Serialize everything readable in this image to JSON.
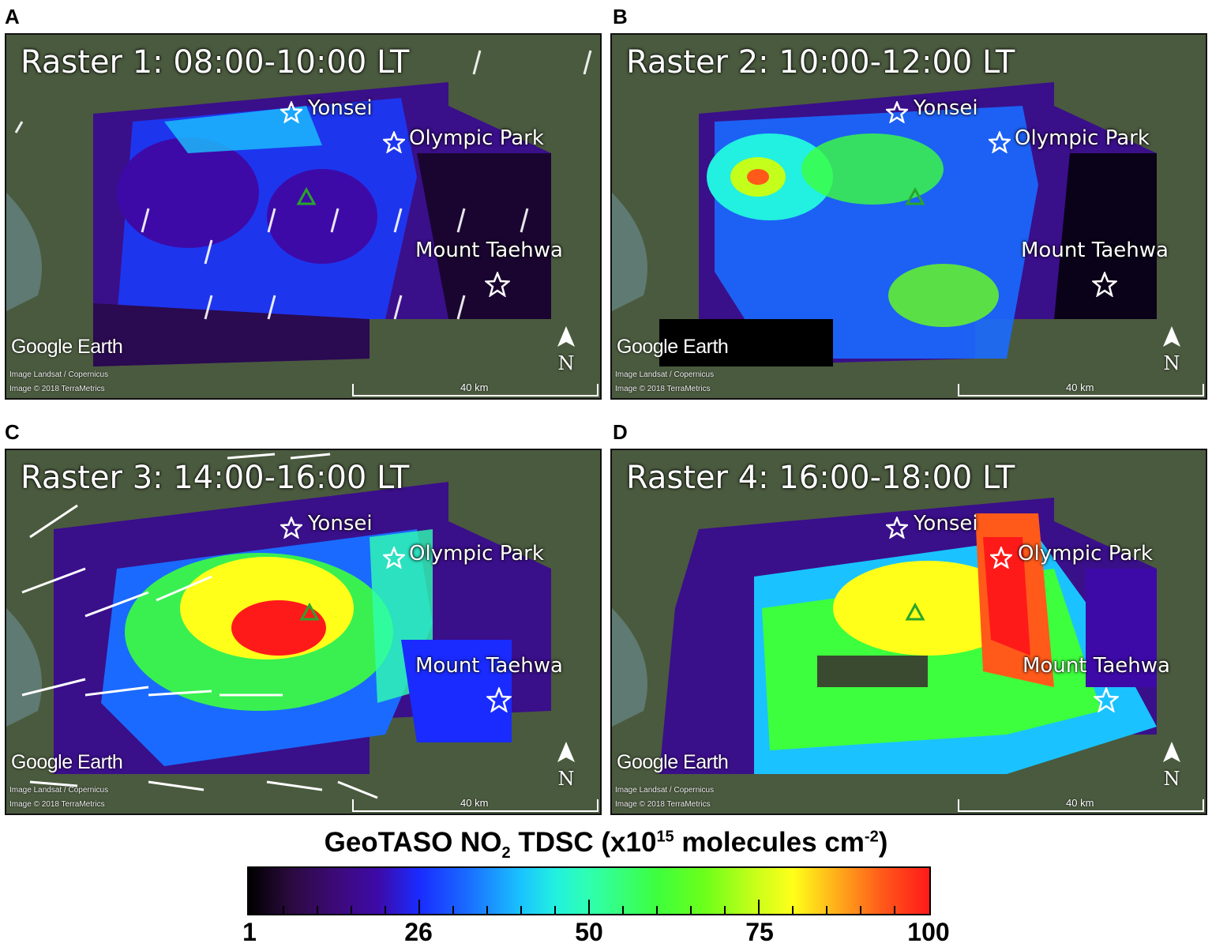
{
  "panels": [
    {
      "letter": "A",
      "title": "Raster 1: 08:00-10:00 LT"
    },
    {
      "letter": "B",
      "title": "Raster 2: 10:00-12:00 LT"
    },
    {
      "letter": "C",
      "title": "Raster 3: 14:00-16:00 LT"
    },
    {
      "letter": "D",
      "title": "Raster 4: 16:00-18:00 LT"
    }
  ],
  "sites": {
    "yonsei": "Yonsei",
    "olympic": "Olympic Park",
    "taehwa": "Mount Taehwa"
  },
  "map_text": {
    "logo": "Google Earth",
    "credit1": "Image Landsat / Copernicus",
    "credit2": "Image © 2018 TerraMetrics",
    "scale": "40 km",
    "north": "N"
  },
  "colorbar": {
    "title_prefix": "GeoTASO NO",
    "title_sub": "2",
    "title_mid": " TDSC (x10",
    "title_sup": "15",
    "title_mid2": " molecules cm",
    "title_sup2": "-2",
    "title_end": ")",
    "labels": [
      "1",
      "26",
      "50",
      "75",
      "100"
    ],
    "scheme": "rainbow (black-purple-blue-cyan-green-yellow-red)"
  }
}
